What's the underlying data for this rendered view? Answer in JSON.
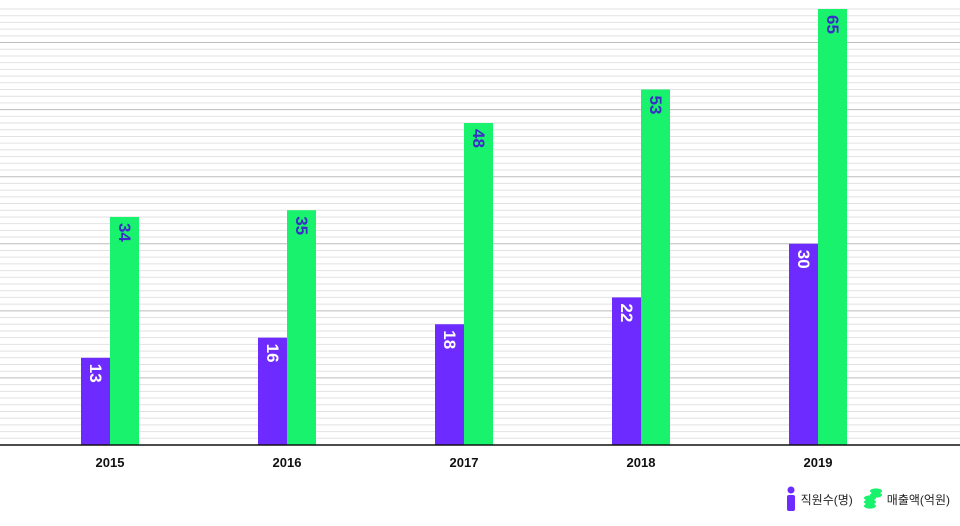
{
  "chart_data": {
    "type": "bar",
    "categories": [
      "2015",
      "2016",
      "2017",
      "2018",
      "2019"
    ],
    "series": [
      {
        "name": "직원수(명)",
        "values": [
          13,
          16,
          18,
          22,
          30
        ],
        "color": "#6e2bff",
        "label_color": "#ffffff",
        "icon": "person-icon"
      },
      {
        "name": "매출액(억원)",
        "values": [
          34,
          35,
          48,
          53,
          65
        ],
        "color": "#19f26c",
        "label_color": "#3b2bc9",
        "icon": "coin-stack-icon"
      }
    ],
    "ylim": [
      0,
      65
    ],
    "grid": true,
    "legend_position": "bottom-right"
  }
}
